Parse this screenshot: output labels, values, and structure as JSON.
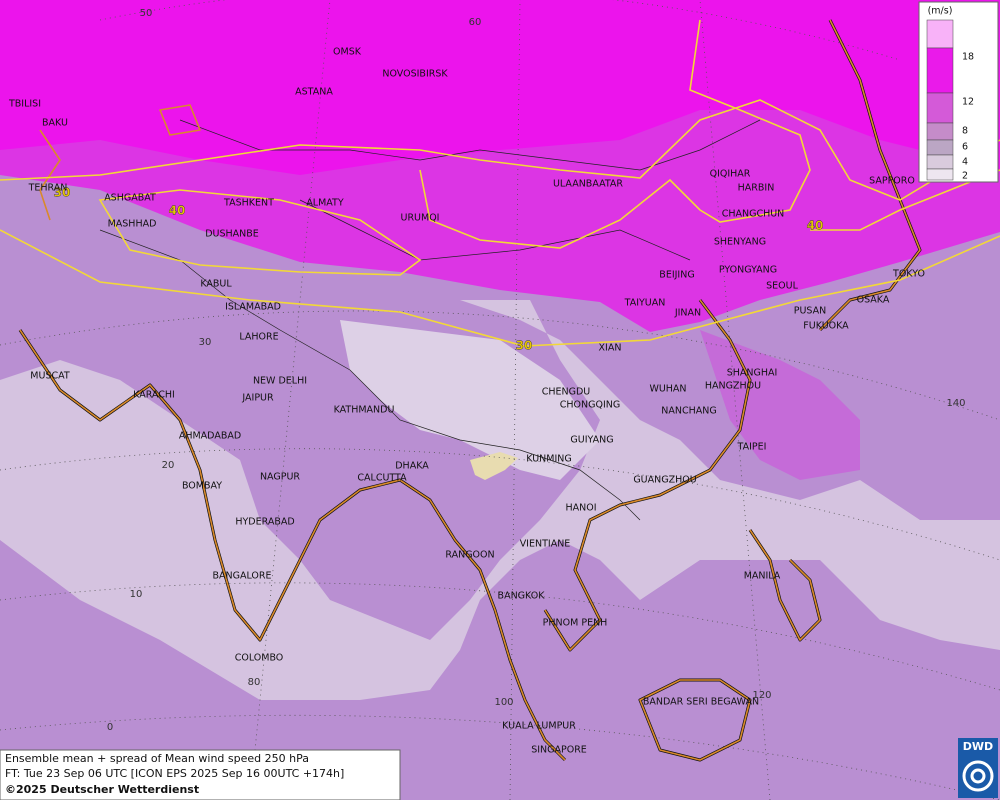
{
  "map": {
    "grid_labels": [
      50,
      60,
      30,
      20,
      10,
      0,
      80,
      100,
      120,
      140
    ],
    "contour_labels": [
      30,
      40,
      40,
      30
    ],
    "cities": [
      "TBILISI",
      "BAKU",
      "TEHRAN",
      "ASHGABAT",
      "MASHHAD",
      "OMSK",
      "NOVOSIBIRSK",
      "ASTANA",
      "TASHKENT",
      "ALMATY",
      "DUSHANBE",
      "URUMQI",
      "ULAANBAATAR",
      "QIQIHAR",
      "HARBIN",
      "CHANGCHUN",
      "SHENYANG",
      "SAPPORO",
      "BEIJING",
      "PYONGYANG",
      "SEOUL",
      "TOKYO",
      "OSAKA",
      "PUSAN",
      "FUKUOKA",
      "TAIYUAN",
      "JINAN",
      "XIAN",
      "KABUL",
      "ISLAMABAD",
      "LAHORE",
      "NEW DELHI",
      "JAIPUR",
      "MUSCAT",
      "KARACHI",
      "KATHMANDU",
      "AHMADABAD",
      "CHENGDU",
      "CHONGQING",
      "WUHAN",
      "SHANGHAI",
      "HANGZHOU",
      "NANCHANG",
      "TAIPEI",
      "GUIYANG",
      "KUNMING",
      "DHAKA",
      "CALCUTTA",
      "NAGPUR",
      "BOMBAY",
      "GUANGZHOU",
      "HANOI",
      "HYDERABAD",
      "RANGOON",
      "VIENTIANE",
      "BANGALORE",
      "MANILA",
      "BANGKOK",
      "PHNOM PENH",
      "COLOMBO",
      "BANDAR SERI BEGAWAN",
      "KUALA LUMPUR",
      "SINGAPORE"
    ],
    "legend": {
      "unit": "(m/s)",
      "labels": [
        18,
        12,
        8,
        6,
        4,
        2
      ]
    },
    "caption": [
      "Ensemble mean + spread of Mean wind speed 250 hPa",
      "FT: Tue 23 Sep 06 UTC [ICON EPS 2025 Sep 16 00UTC +174h]",
      "©2025 Deutscher Wetterdienst"
    ],
    "logo": "DWD"
  }
}
